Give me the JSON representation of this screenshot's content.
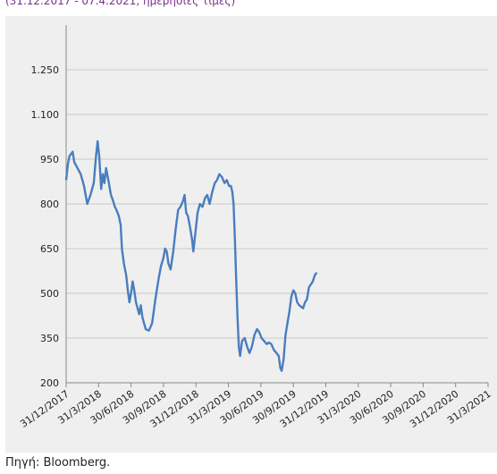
{
  "caption_top": "(31.12.2017 - 07.4.2021, ημερήσιες τιμές)",
  "source_text": "Πηγή: Bloomberg.",
  "colors": {
    "line": "#4a7dbf",
    "panel": "#efefef",
    "grid": "#c8c8c8"
  },
  "chart_data": {
    "type": "line",
    "title": "",
    "xlabel": "",
    "ylabel": "",
    "ylim": [
      200,
      1400
    ],
    "y_ticks": [
      "200",
      "350",
      "500",
      "650",
      "800",
      "950",
      "1.100",
      "1.250"
    ],
    "y_tick_values": [
      200,
      350,
      500,
      650,
      800,
      950,
      1100,
      1250
    ],
    "x_ticks": [
      "31/12/2017",
      "31/3/2018",
      "30/6/2018",
      "30/9/2018",
      "31/12/2018",
      "31/3/2019",
      "30/6/2019",
      "30/9/2019",
      "31/12/2019",
      "31/3/2020",
      "30/6/2020",
      "30/9/2020",
      "31/12/2020",
      "31/3/2021"
    ],
    "grid": true,
    "legend": "none",
    "series": [
      {
        "values": [
          [
            0.0,
            880
          ],
          [
            0.05,
            930
          ],
          [
            0.1,
            960
          ],
          [
            0.2,
            975
          ],
          [
            0.25,
            940
          ],
          [
            0.35,
            920
          ],
          [
            0.45,
            900
          ],
          [
            0.55,
            860
          ],
          [
            0.65,
            800
          ],
          [
            0.75,
            830
          ],
          [
            0.85,
            870
          ],
          [
            0.92,
            960
          ],
          [
            0.97,
            1010
          ],
          [
            1.02,
            960
          ],
          [
            1.08,
            850
          ],
          [
            1.13,
            900
          ],
          [
            1.18,
            870
          ],
          [
            1.23,
            920
          ],
          [
            1.3,
            880
          ],
          [
            1.38,
            830
          ],
          [
            1.45,
            810
          ],
          [
            1.5,
            790
          ],
          [
            1.55,
            780
          ],
          [
            1.62,
            760
          ],
          [
            1.68,
            730
          ],
          [
            1.72,
            650
          ],
          [
            1.78,
            600
          ],
          [
            1.85,
            560
          ],
          [
            1.9,
            510
          ],
          [
            1.95,
            470
          ],
          [
            2.0,
            500
          ],
          [
            2.05,
            540
          ],
          [
            2.1,
            510
          ],
          [
            2.15,
            470
          ],
          [
            2.2,
            450
          ],
          [
            2.25,
            430
          ],
          [
            2.3,
            460
          ],
          [
            2.35,
            420
          ],
          [
            2.4,
            400
          ],
          [
            2.45,
            380
          ],
          [
            2.55,
            375
          ],
          [
            2.65,
            400
          ],
          [
            2.75,
            480
          ],
          [
            2.85,
            550
          ],
          [
            2.92,
            590
          ],
          [
            3.0,
            620
          ],
          [
            3.05,
            650
          ],
          [
            3.1,
            640
          ],
          [
            3.15,
            600
          ],
          [
            3.22,
            580
          ],
          [
            3.3,
            640
          ],
          [
            3.38,
            720
          ],
          [
            3.45,
            780
          ],
          [
            3.52,
            790
          ],
          [
            3.6,
            810
          ],
          [
            3.65,
            830
          ],
          [
            3.7,
            770
          ],
          [
            3.75,
            760
          ],
          [
            3.82,
            720
          ],
          [
            3.88,
            680
          ],
          [
            3.92,
            640
          ],
          [
            3.98,
            700
          ],
          [
            4.05,
            770
          ],
          [
            4.12,
            800
          ],
          [
            4.2,
            790
          ],
          [
            4.28,
            820
          ],
          [
            4.35,
            830
          ],
          [
            4.42,
            800
          ],
          [
            4.5,
            840
          ],
          [
            4.58,
            870
          ],
          [
            4.65,
            880
          ],
          [
            4.72,
            900
          ],
          [
            4.8,
            890
          ],
          [
            4.88,
            870
          ],
          [
            4.95,
            880
          ],
          [
            5.02,
            860
          ],
          [
            5.08,
            860
          ],
          [
            5.12,
            840
          ],
          [
            5.16,
            800
          ],
          [
            5.2,
            680
          ],
          [
            5.24,
            540
          ],
          [
            5.28,
            420
          ],
          [
            5.32,
            320
          ],
          [
            5.36,
            290
          ],
          [
            5.42,
            340
          ],
          [
            5.5,
            350
          ],
          [
            5.58,
            320
          ],
          [
            5.65,
            300
          ],
          [
            5.72,
            320
          ],
          [
            5.8,
            360
          ],
          [
            5.88,
            380
          ],
          [
            5.95,
            370
          ],
          [
            6.02,
            350
          ],
          [
            6.1,
            340
          ],
          [
            6.18,
            330
          ],
          [
            6.25,
            335
          ],
          [
            6.32,
            330
          ],
          [
            6.4,
            310
          ],
          [
            6.48,
            300
          ],
          [
            6.55,
            290
          ],
          [
            6.6,
            250
          ],
          [
            6.64,
            240
          ],
          [
            6.7,
            280
          ],
          [
            6.76,
            360
          ],
          [
            6.82,
            400
          ],
          [
            6.88,
            440
          ],
          [
            6.94,
            490
          ],
          [
            7.0,
            510
          ],
          [
            7.06,
            500
          ],
          [
            7.12,
            470
          ],
          [
            7.18,
            460
          ],
          [
            7.24,
            455
          ],
          [
            7.3,
            450
          ],
          [
            7.36,
            470
          ],
          [
            7.42,
            480
          ],
          [
            7.48,
            520
          ],
          [
            7.54,
            530
          ],
          [
            7.6,
            540
          ],
          [
            7.66,
            560
          ],
          [
            7.72,
            570
          ]
        ]
      }
    ]
  }
}
